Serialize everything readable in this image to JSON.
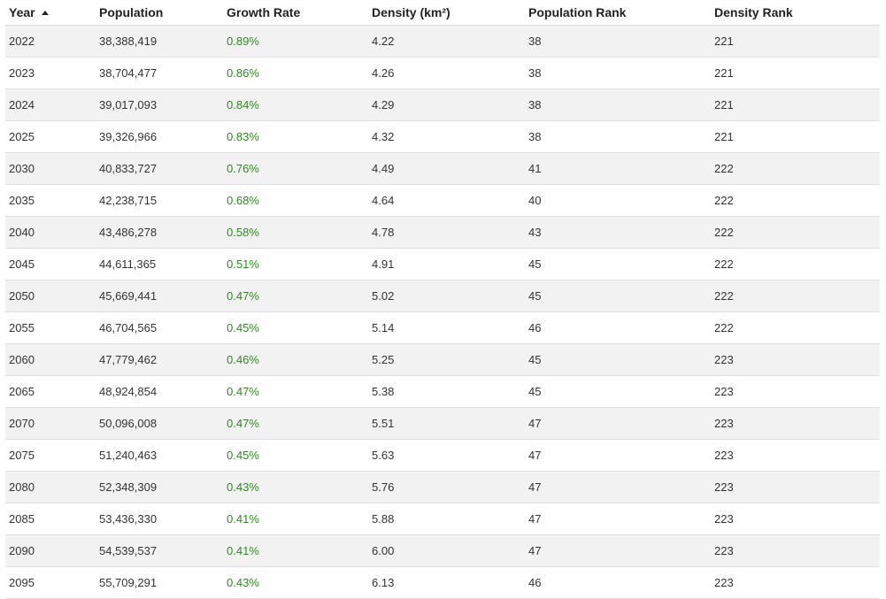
{
  "table": {
    "columns": {
      "year": "Year",
      "population": "Population",
      "growth_rate": "Growth Rate",
      "density": "Density (km²)",
      "population_rank": "Population Rank",
      "density_rank": "Density Rank"
    },
    "sort": {
      "column": "year",
      "direction": "ascending",
      "icon": "sort-ascending-icon"
    },
    "rows": [
      {
        "year": "2022",
        "population": "38,388,419",
        "growth_rate": "0.89%",
        "density": "4.22",
        "population_rank": "38",
        "density_rank": "221"
      },
      {
        "year": "2023",
        "population": "38,704,477",
        "growth_rate": "0.86%",
        "density": "4.26",
        "population_rank": "38",
        "density_rank": "221"
      },
      {
        "year": "2024",
        "population": "39,017,093",
        "growth_rate": "0.84%",
        "density": "4.29",
        "population_rank": "38",
        "density_rank": "221"
      },
      {
        "year": "2025",
        "population": "39,326,966",
        "growth_rate": "0.83%",
        "density": "4.32",
        "population_rank": "38",
        "density_rank": "221"
      },
      {
        "year": "2030",
        "population": "40,833,727",
        "growth_rate": "0.76%",
        "density": "4.49",
        "population_rank": "41",
        "density_rank": "222"
      },
      {
        "year": "2035",
        "population": "42,238,715",
        "growth_rate": "0.68%",
        "density": "4.64",
        "population_rank": "40",
        "density_rank": "222"
      },
      {
        "year": "2040",
        "population": "43,486,278",
        "growth_rate": "0.58%",
        "density": "4.78",
        "population_rank": "43",
        "density_rank": "222"
      },
      {
        "year": "2045",
        "population": "44,611,365",
        "growth_rate": "0.51%",
        "density": "4.91",
        "population_rank": "45",
        "density_rank": "222"
      },
      {
        "year": "2050",
        "population": "45,669,441",
        "growth_rate": "0.47%",
        "density": "5.02",
        "population_rank": "45",
        "density_rank": "222"
      },
      {
        "year": "2055",
        "population": "46,704,565",
        "growth_rate": "0.45%",
        "density": "5.14",
        "population_rank": "46",
        "density_rank": "222"
      },
      {
        "year": "2060",
        "population": "47,779,462",
        "growth_rate": "0.46%",
        "density": "5.25",
        "population_rank": "45",
        "density_rank": "223"
      },
      {
        "year": "2065",
        "population": "48,924,854",
        "growth_rate": "0.47%",
        "density": "5.38",
        "population_rank": "45",
        "density_rank": "223"
      },
      {
        "year": "2070",
        "population": "50,096,008",
        "growth_rate": "0.47%",
        "density": "5.51",
        "population_rank": "47",
        "density_rank": "223"
      },
      {
        "year": "2075",
        "population": "51,240,463",
        "growth_rate": "0.45%",
        "density": "5.63",
        "population_rank": "47",
        "density_rank": "223"
      },
      {
        "year": "2080",
        "population": "52,348,309",
        "growth_rate": "0.43%",
        "density": "5.76",
        "population_rank": "47",
        "density_rank": "223"
      },
      {
        "year": "2085",
        "population": "53,436,330",
        "growth_rate": "0.41%",
        "density": "5.88",
        "population_rank": "47",
        "density_rank": "223"
      },
      {
        "year": "2090",
        "population": "54,539,537",
        "growth_rate": "0.41%",
        "density": "6.00",
        "population_rank": "47",
        "density_rank": "223"
      },
      {
        "year": "2095",
        "population": "55,709,291",
        "growth_rate": "0.43%",
        "density": "6.13",
        "population_rank": "46",
        "density_rank": "223"
      }
    ]
  },
  "colors": {
    "growth_text": "#2e8b1f",
    "stripe": "#f2f2f2"
  }
}
